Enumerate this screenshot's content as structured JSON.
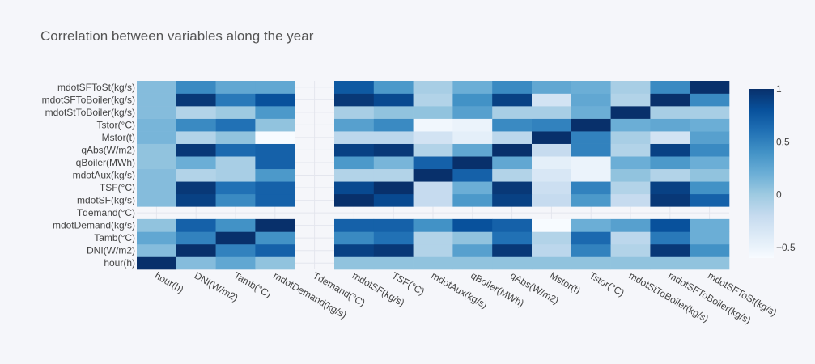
{
  "chart_data": {
    "type": "heatmap",
    "title": "Correlation between variables along the year",
    "x_labels": [
      "hour(h)",
      "DNI(W/m2)",
      "Tamb(°C)",
      "mdotDemand(kg/s)",
      "Tdemand(°C)",
      "mdotSF(kg/s)",
      "TSF(°C)",
      "mdotAux(kg/s)",
      "qBoiler(MWh)",
      "qAbs(W/m2)",
      "Mstor(t)",
      "Tstor(°C)",
      "mdotStToBoiler(kg/s)",
      "mdotSFToBoiler(kg/s)",
      "mdotSFToSt(kg/s)"
    ],
    "y_labels": [
      "hour(h)",
      "DNI(W/m2)",
      "Tamb(°C)",
      "mdotDemand(kg/s)",
      "Tdemand(°C)",
      "mdotSF(kg/s)",
      "TSF(°C)",
      "mdotAux(kg/s)",
      "qBoiler(MWh)",
      "qAbs(W/m2)",
      "Mstor(t)",
      "Tstor(°C)",
      "mdotStToBoiler(kg/s)",
      "mdotSFToBoiler(kg/s)",
      "mdotSFToSt(kg/s)"
    ],
    "z": [
      [
        1,
        0.1,
        0.25,
        0.05,
        null,
        0.05,
        0.05,
        0.05,
        0.05,
        0.05,
        0.05,
        0.05,
        0.05,
        0.05,
        0.05
      ],
      [
        0.1,
        1,
        0.5,
        0.7,
        null,
        0.9,
        0.95,
        -0.1,
        0.3,
        0.95,
        -0.15,
        0.5,
        -0.1,
        0.95,
        0.4
      ],
      [
        0.25,
        0.5,
        1,
        0.4,
        null,
        0.45,
        0.6,
        -0.1,
        0.05,
        0.6,
        -0.1,
        0.65,
        -0.15,
        0.55,
        0.2
      ],
      [
        0.05,
        0.7,
        0.4,
        1,
        null,
        0.7,
        0.7,
        0.4,
        0.8,
        0.7,
        -0.6,
        0.2,
        0.3,
        0.8,
        0.2
      ],
      [
        null,
        null,
        null,
        null,
        null,
        null,
        null,
        null,
        null,
        null,
        null,
        null,
        null,
        null,
        null
      ],
      [
        0.1,
        0.9,
        0.45,
        0.7,
        null,
        1,
        0.85,
        -0.2,
        0.35,
        0.9,
        -0.2,
        0.35,
        -0.2,
        0.95,
        0.7
      ],
      [
        0.1,
        0.95,
        0.6,
        0.7,
        null,
        0.85,
        1,
        -0.2,
        0.2,
        0.95,
        -0.25,
        0.5,
        -0.1,
        0.9,
        0.4
      ],
      [
        0.1,
        -0.1,
        -0.05,
        0.35,
        null,
        -0.1,
        -0.1,
        1,
        0.7,
        -0.1,
        -0.35,
        -0.5,
        0.05,
        -0.1,
        0.05
      ],
      [
        0.05,
        0.2,
        -0.05,
        0.7,
        null,
        0.35,
        0.15,
        0.7,
        1,
        0.25,
        -0.45,
        -0.5,
        0.2,
        0.35,
        0.2
      ],
      [
        0.05,
        0.95,
        0.65,
        0.7,
        null,
        0.9,
        0.95,
        -0.1,
        0.25,
        1,
        -0.2,
        0.5,
        -0.1,
        0.9,
        0.45
      ],
      [
        0.15,
        -0.1,
        0.05,
        -0.6,
        null,
        -0.15,
        -0.15,
        -0.3,
        -0.45,
        -0.15,
        1,
        0.5,
        -0.05,
        -0.3,
        0.3
      ],
      [
        0.15,
        0.45,
        0.6,
        0.05,
        null,
        0.3,
        0.45,
        -0.55,
        -0.5,
        0.45,
        0.5,
        1,
        0.2,
        0.25,
        0.2
      ],
      [
        0.1,
        -0.1,
        0.0,
        0.35,
        null,
        -0.05,
        0.05,
        0.05,
        0.3,
        -0.05,
        -0.05,
        0.2,
        1,
        -0.05,
        -0.05
      ],
      [
        0.1,
        0.95,
        0.55,
        0.8,
        null,
        0.95,
        0.85,
        -0.1,
        0.4,
        0.9,
        -0.3,
        0.25,
        -0.1,
        1,
        0.45
      ],
      [
        0.1,
        0.45,
        0.25,
        0.25,
        null,
        0.75,
        0.35,
        -0.05,
        0.2,
        0.45,
        0.25,
        0.2,
        -0.05,
        0.45,
        1
      ]
    ],
    "zmin": -0.6,
    "zmax": 1,
    "colorscale": "Blues",
    "colorbar_ticks": [
      1,
      0.5,
      0,
      -0.5
    ],
    "colorbar_tick_labels": [
      "1",
      "0.5",
      "0",
      "−0.5"
    ],
    "grid": true
  }
}
